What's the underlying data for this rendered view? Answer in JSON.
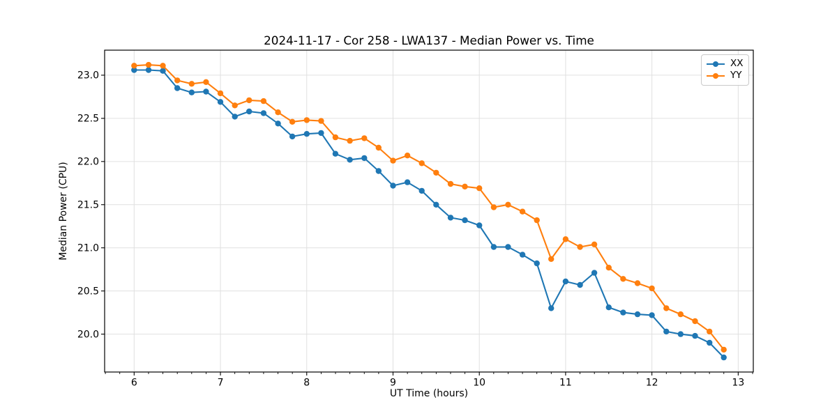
{
  "figure": {
    "title": "2024-11-17 - Cor 258 - LWA137 - Median Power vs. Time"
  },
  "legend": {
    "entries": [
      "XX",
      "YY"
    ]
  },
  "chart_data": {
    "type": "line",
    "title": "2024-11-17 - Cor 258 - LWA137 - Median Power vs. Time",
    "xlabel": "UT Time (hours)",
    "ylabel": "Median Power (CPU)",
    "xlim": [
      5.658,
      13.175
    ],
    "ylim": [
      19.561,
      23.29
    ],
    "xticks": [
      6,
      7,
      8,
      9,
      10,
      11,
      12,
      13
    ],
    "yticks": [
      20.0,
      20.5,
      21.0,
      21.5,
      22.0,
      22.5,
      23.0
    ],
    "x_minor_step": 0.16667,
    "grid": true,
    "grid_color": "#e0e0e0",
    "legend_position": "upper right",
    "x": [
      6.0,
      6.167,
      6.333,
      6.5,
      6.667,
      6.833,
      7.0,
      7.167,
      7.333,
      7.5,
      7.667,
      7.833,
      8.0,
      8.167,
      8.333,
      8.5,
      8.667,
      8.833,
      9.0,
      9.167,
      9.333,
      9.5,
      9.667,
      9.833,
      10.0,
      10.167,
      10.333,
      10.5,
      10.667,
      10.833,
      11.0,
      11.167,
      11.333,
      11.5,
      11.667,
      11.833,
      12.0,
      12.167,
      12.333,
      12.5,
      12.667,
      12.833
    ],
    "series": [
      {
        "name": "XX",
        "color": "#1f77b4",
        "values": [
          23.06,
          23.06,
          23.05,
          22.85,
          22.8,
          22.81,
          22.69,
          22.52,
          22.58,
          22.56,
          22.44,
          22.29,
          22.32,
          22.33,
          22.09,
          22.02,
          22.04,
          21.89,
          21.72,
          21.76,
          21.66,
          21.5,
          21.35,
          21.32,
          21.26,
          21.01,
          21.01,
          20.92,
          20.82,
          20.3,
          20.61,
          20.57,
          20.71,
          20.31,
          20.25,
          20.23,
          20.22,
          20.03,
          20.0,
          19.98,
          19.9,
          19.73
        ]
      },
      {
        "name": "YY",
        "color": "#ff7f0e",
        "values": [
          23.11,
          23.12,
          23.11,
          22.94,
          22.9,
          22.92,
          22.79,
          22.65,
          22.71,
          22.7,
          22.57,
          22.46,
          22.48,
          22.47,
          22.28,
          22.24,
          22.27,
          22.16,
          22.01,
          22.07,
          21.98,
          21.87,
          21.74,
          21.71,
          21.69,
          21.47,
          21.5,
          21.42,
          21.32,
          20.87,
          21.1,
          21.01,
          21.04,
          20.77,
          20.64,
          20.59,
          20.53,
          20.3,
          20.23,
          20.15,
          20.03,
          19.82
        ]
      }
    ]
  }
}
